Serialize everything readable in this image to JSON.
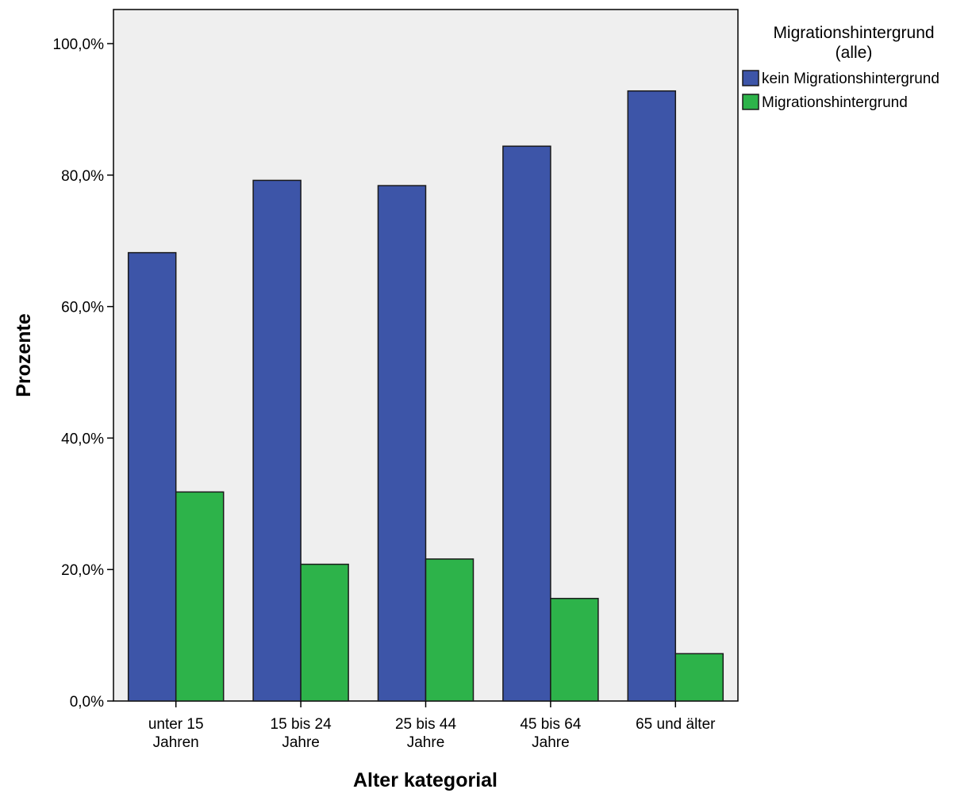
{
  "chart_data": {
    "type": "bar",
    "categories": [
      [
        "unter 15",
        "Jahren"
      ],
      [
        "15 bis 24",
        "Jahre"
      ],
      [
        "25 bis 44",
        "Jahre"
      ],
      [
        "45 bis 64",
        "Jahre"
      ],
      [
        "65 und älter"
      ]
    ],
    "series": [
      {
        "name": "kein Migrationshintergrund",
        "color": "#3d55a8",
        "values": [
          68.2,
          79.2,
          78.4,
          84.4,
          92.8
        ]
      },
      {
        "name": "Migrationshintergrund",
        "color": "#2db34a",
        "values": [
          31.8,
          20.8,
          21.6,
          15.6,
          7.2
        ]
      }
    ],
    "xlabel": "Alter kategorial",
    "ylabel": "Prozente",
    "ylim": [
      0,
      100
    ],
    "yticks": [
      0,
      20,
      40,
      60,
      80,
      100
    ],
    "ytick_labels": [
      "0,0%",
      "20,0%",
      "40,0%",
      "60,0%",
      "80,0%",
      "100,0%"
    ],
    "legend": {
      "title_lines": [
        "Migrationshintergrund",
        "(alle)"
      ],
      "placement": "right"
    },
    "plot_background": "#efefef",
    "grid": false
  }
}
